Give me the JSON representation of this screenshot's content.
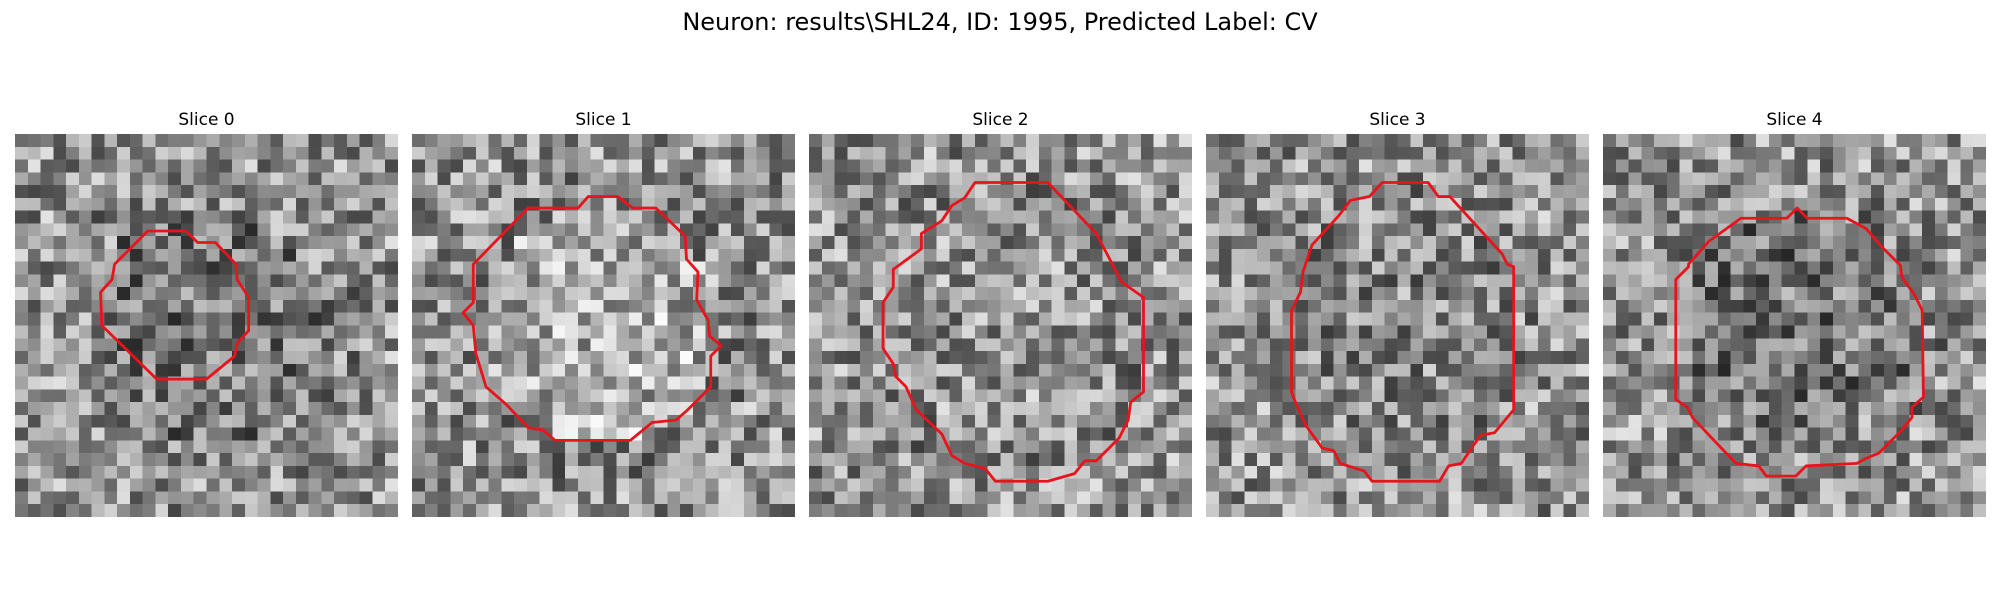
{
  "figure": {
    "title": "Neuron: results\\SHL24, ID: 1995, Predicted Label: CV"
  },
  "contour_color": "#e8141c",
  "grid_size": 30,
  "panels": [
    {
      "title": "Slice 0",
      "image_seed": 11,
      "center_tone": "dark",
      "roi_polygon_cells": [
        [
          10.4,
          7.6
        ],
        [
          13.4,
          7.6
        ],
        [
          14.3,
          8.5
        ],
        [
          15.7,
          8.5
        ],
        [
          17.3,
          10.2
        ],
        [
          17.4,
          11.4
        ],
        [
          18.3,
          12.8
        ],
        [
          18.3,
          15.4
        ],
        [
          17.4,
          16.4
        ],
        [
          17.2,
          17.4
        ],
        [
          15.0,
          19.2
        ],
        [
          11.1,
          19.2
        ],
        [
          6.8,
          15.0
        ],
        [
          6.7,
          12.4
        ],
        [
          7.6,
          11.4
        ],
        [
          7.8,
          10.2
        ]
      ]
    },
    {
      "title": "Slice 1",
      "image_seed": 23,
      "center_tone": "light",
      "roi_polygon_cells": [
        [
          9.1,
          5.8
        ],
        [
          13.0,
          5.8
        ],
        [
          13.8,
          4.9
        ],
        [
          16.1,
          4.9
        ],
        [
          17.3,
          5.8
        ],
        [
          19.1,
          5.8
        ],
        [
          21.4,
          8.0
        ],
        [
          21.5,
          9.8
        ],
        [
          22.4,
          10.8
        ],
        [
          22.3,
          13.0
        ],
        [
          23.2,
          14.6
        ],
        [
          23.3,
          15.8
        ],
        [
          24.2,
          16.6
        ],
        [
          23.4,
          17.4
        ],
        [
          23.4,
          19.8
        ],
        [
          21.6,
          21.6
        ],
        [
          20.7,
          22.4
        ],
        [
          18.8,
          22.6
        ],
        [
          17.1,
          24.0
        ],
        [
          11.2,
          24.0
        ],
        [
          10.3,
          23.2
        ],
        [
          9.1,
          23.0
        ],
        [
          7.4,
          21.2
        ],
        [
          5.8,
          19.8
        ],
        [
          5.0,
          17.2
        ],
        [
          4.8,
          15.0
        ],
        [
          4.0,
          14.0
        ],
        [
          4.8,
          13.2
        ],
        [
          4.8,
          10.2
        ]
      ]
    },
    {
      "title": "Slice 2",
      "image_seed": 37,
      "center_tone": "mid",
      "roi_polygon_cells": [
        [
          13.0,
          3.8
        ],
        [
          18.7,
          3.8
        ],
        [
          22.5,
          7.8
        ],
        [
          24.5,
          11.6
        ],
        [
          26.2,
          12.8
        ],
        [
          26.2,
          20.2
        ],
        [
          25.2,
          21.0
        ],
        [
          25.0,
          22.4
        ],
        [
          24.3,
          23.8
        ],
        [
          22.5,
          25.6
        ],
        [
          21.6,
          25.6
        ],
        [
          20.8,
          26.6
        ],
        [
          18.7,
          27.2
        ],
        [
          14.6,
          27.2
        ],
        [
          13.8,
          26.2
        ],
        [
          12.2,
          25.8
        ],
        [
          11.2,
          25.2
        ],
        [
          10.4,
          23.5
        ],
        [
          8.4,
          21.6
        ],
        [
          7.6,
          19.8
        ],
        [
          6.8,
          19.0
        ],
        [
          6.6,
          18.0
        ],
        [
          5.8,
          16.8
        ],
        [
          5.8,
          13.2
        ],
        [
          6.6,
          12.0
        ],
        [
          6.6,
          10.6
        ],
        [
          8.8,
          9.0
        ],
        [
          8.8,
          7.8
        ],
        [
          10.4,
          6.8
        ],
        [
          11.2,
          5.6
        ],
        [
          12.2,
          5.0
        ]
      ]
    },
    {
      "title": "Slice 3",
      "image_seed": 53,
      "center_tone": "mid-dark",
      "roi_polygon_cells": [
        [
          12.8,
          4.9
        ],
        [
          13.8,
          3.8
        ],
        [
          17.4,
          3.8
        ],
        [
          18.2,
          4.9
        ],
        [
          19.1,
          4.9
        ],
        [
          23.2,
          9.4
        ],
        [
          23.6,
          10.2
        ],
        [
          24.1,
          10.4
        ],
        [
          24.1,
          21.6
        ],
        [
          22.6,
          23.4
        ],
        [
          21.5,
          23.6
        ],
        [
          20.8,
          24.6
        ],
        [
          20.0,
          25.8
        ],
        [
          19.0,
          26.0
        ],
        [
          18.3,
          27.2
        ],
        [
          13.0,
          27.2
        ],
        [
          12.4,
          26.4
        ],
        [
          10.5,
          25.8
        ],
        [
          10.0,
          24.8
        ],
        [
          9.1,
          24.6
        ],
        [
          7.8,
          22.8
        ],
        [
          7.0,
          21.0
        ],
        [
          6.7,
          20.2
        ],
        [
          6.7,
          13.8
        ],
        [
          7.4,
          12.4
        ],
        [
          7.6,
          10.8
        ],
        [
          8.3,
          8.7
        ],
        [
          10.4,
          6.4
        ],
        [
          11.3,
          5.2
        ]
      ]
    },
    {
      "title": "Slice 4",
      "image_seed": 71,
      "center_tone": "dark",
      "roi_polygon_cells": [
        [
          8.3,
          8.4
        ],
        [
          10.8,
          6.6
        ],
        [
          14.4,
          6.6
        ],
        [
          15.2,
          5.8
        ],
        [
          16.0,
          6.6
        ],
        [
          19.1,
          6.6
        ],
        [
          20.6,
          7.4
        ],
        [
          21.8,
          8.8
        ],
        [
          23.3,
          10.3
        ],
        [
          23.4,
          11.2
        ],
        [
          24.4,
          12.6
        ],
        [
          25.0,
          13.8
        ],
        [
          25.1,
          20.6
        ],
        [
          24.2,
          21.4
        ],
        [
          24.2,
          22.2
        ],
        [
          23.4,
          23.2
        ],
        [
          21.6,
          25.0
        ],
        [
          20.6,
          25.4
        ],
        [
          19.9,
          25.8
        ],
        [
          15.9,
          26.0
        ],
        [
          15.1,
          26.8
        ],
        [
          12.8,
          26.8
        ],
        [
          12.2,
          26.0
        ],
        [
          10.4,
          25.8
        ],
        [
          7.0,
          22.2
        ],
        [
          6.6,
          21.4
        ],
        [
          5.7,
          20.8
        ],
        [
          5.7,
          11.4
        ],
        [
          6.7,
          10.4
        ],
        [
          6.7,
          10.2
        ]
      ]
    }
  ]
}
